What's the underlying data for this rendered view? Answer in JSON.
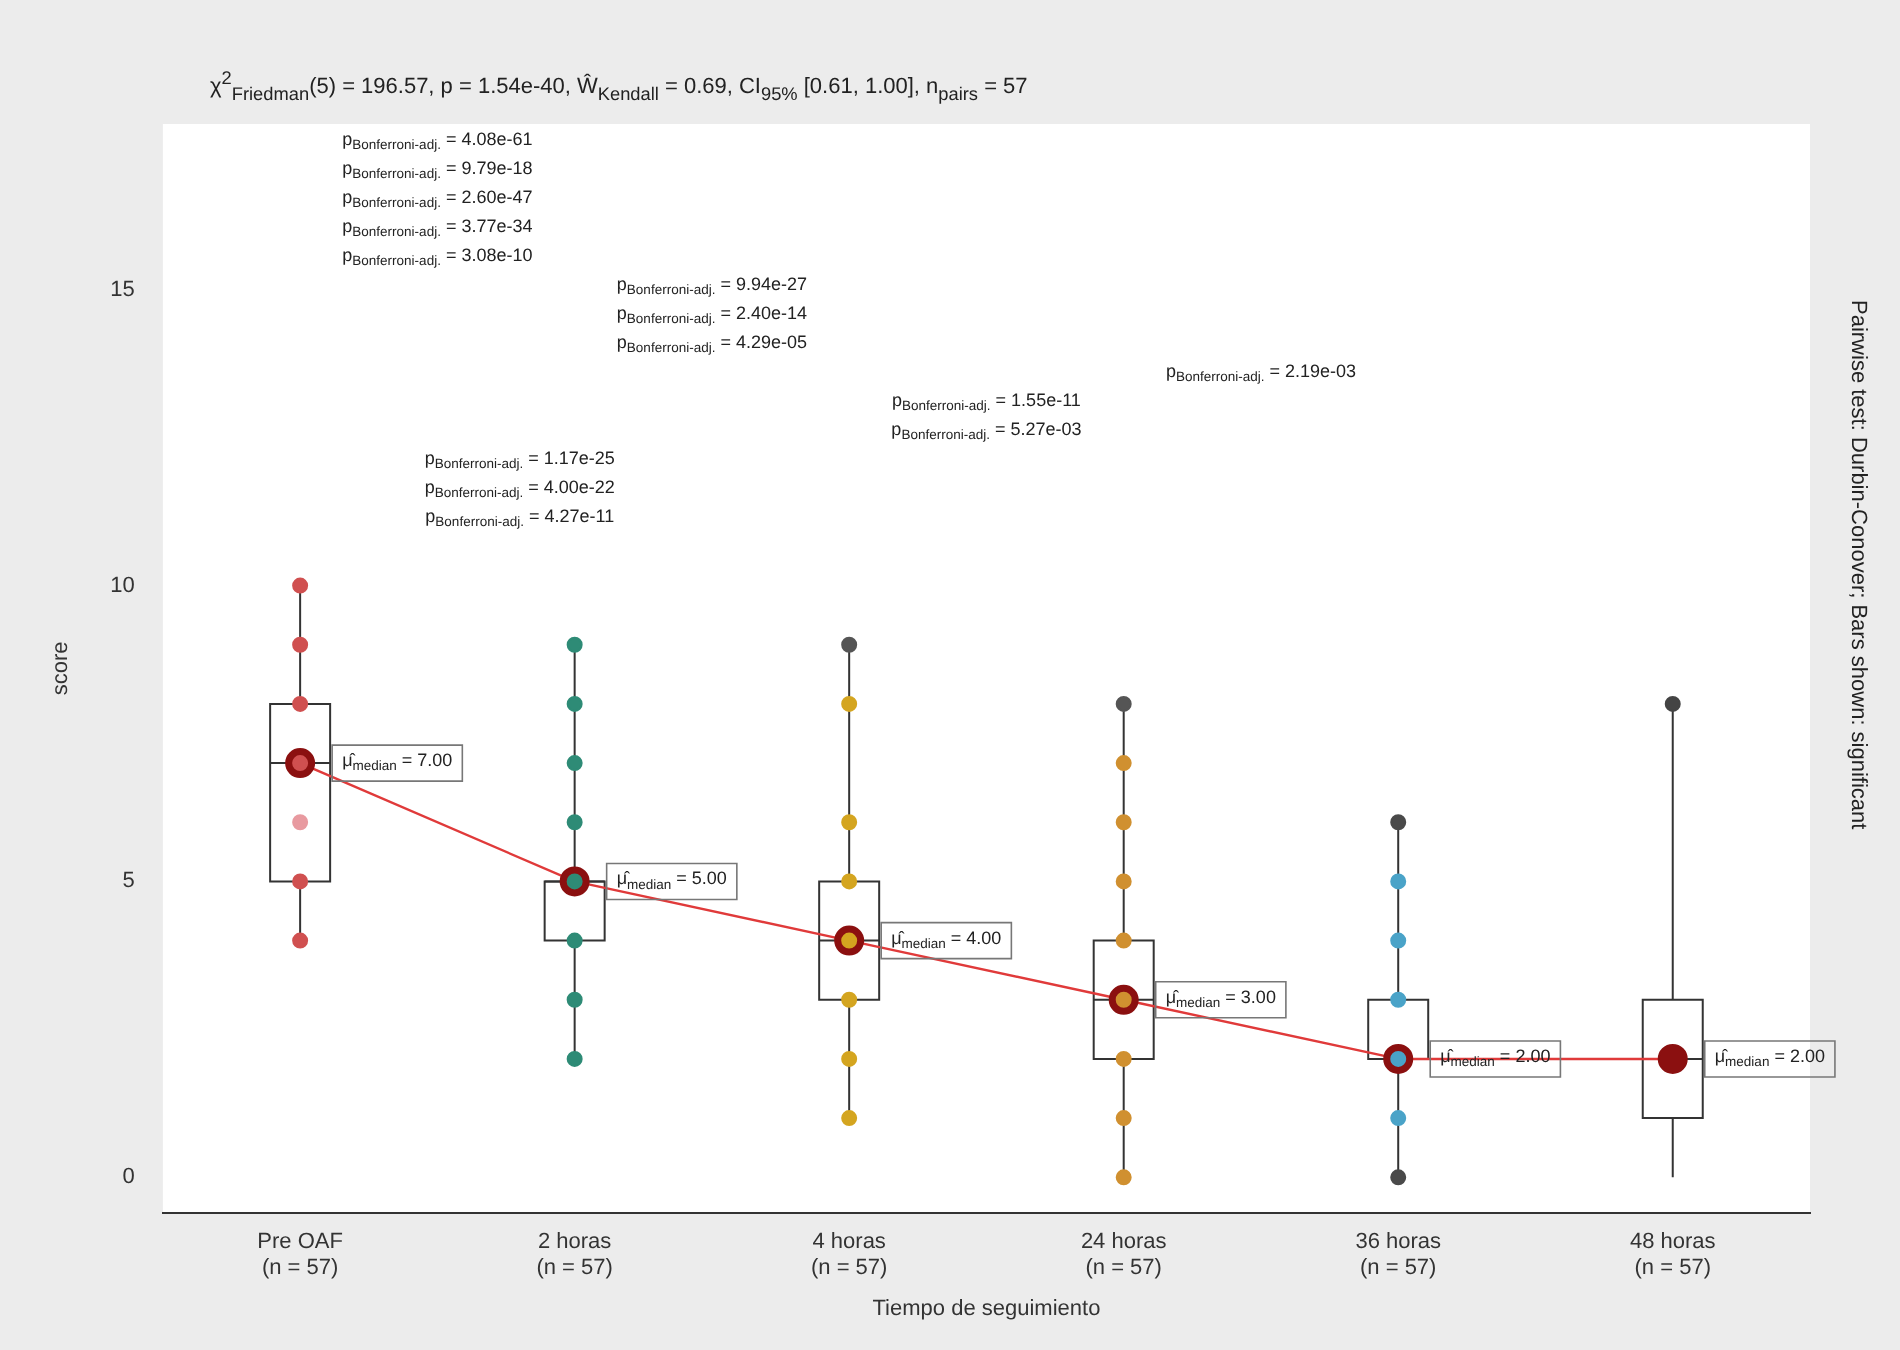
{
  "chart_data": {
    "type": "box",
    "title": "χ$^{2}$$_{Friedman}$(5) = 196.57, p = 1.54e-40, Ŵ$_{Kendall}$ = 0.69, CI$_{95%}$ [0.61, 1.00], n$_{pairs}$ = 57",
    "xlabel": "Tiempo de seguimiento",
    "ylabel": "score",
    "categories": [
      "Pre OAF\n(n = 57)",
      "2 horas\n(n = 57)",
      "4 horas\n(n = 57)",
      "24 horas\n(n = 57)",
      "36 horas\n(n = 57)",
      "48 horas\n(n = 57)"
    ],
    "ylim": [
      -0.6,
      17.8
    ],
    "yticks": [
      0,
      5,
      10,
      15
    ],
    "grid": false,
    "series": [
      {
        "type": "box",
        "color": "#333333",
        "boxes": [
          {
            "low": 4,
            "q1": 5,
            "median": 7,
            "q3": 8,
            "high": 10
          },
          {
            "low": 2,
            "q1": 4,
            "median": 5,
            "q3": 5,
            "high": 9
          },
          {
            "low": 1,
            "q1": 3,
            "median": 4,
            "q3": 5,
            "high": 9
          },
          {
            "low": 0,
            "q1": 2,
            "median": 3,
            "q3": 4,
            "high": 8
          },
          {
            "low": 0,
            "q1": 2,
            "median": 2,
            "q3": 3,
            "high": 6
          },
          {
            "low": 0,
            "q1": 1,
            "median": 2,
            "q3": 3,
            "high": 8
          }
        ]
      },
      {
        "type": "scatter",
        "marker": "circle",
        "x": [
          "Pre OAF\n(n = 57)",
          "Pre OAF\n(n = 57)",
          "Pre OAF\n(n = 57)",
          "Pre OAF\n(n = 57)",
          "Pre OAF\n(n = 57)",
          "Pre OAF\n(n = 57)",
          "Pre OAF\n(n = 57)",
          "2 horas\n(n = 57)",
          "2 horas\n(n = 57)",
          "2 horas\n(n = 57)",
          "2 horas\n(n = 57)",
          "2 horas\n(n = 57)",
          "2 horas\n(n = 57)",
          "2 horas\n(n = 57)",
          "2 horas\n(n = 57)",
          "4 horas\n(n = 57)",
          "4 horas\n(n = 57)",
          "4 horas\n(n = 57)",
          "4 horas\n(n = 57)",
          "4 horas\n(n = 57)",
          "4 horas\n(n = 57)",
          "4 horas\n(n = 57)",
          "4 horas\n(n = 57)",
          "24 horas\n(n = 57)",
          "24 horas\n(n = 57)",
          "24 horas\n(n = 57)",
          "24 horas\n(n = 57)",
          "24 horas\n(n = 57)",
          "24 horas\n(n = 57)",
          "24 horas\n(n = 57)",
          "24 horas\n(n = 57)",
          "24 horas\n(n = 57)",
          "36 horas\n(n = 57)",
          "36 horas\n(n = 57)",
          "36 horas\n(n = 57)",
          "36 horas\n(n = 57)",
          "36 horas\n(n = 57)",
          "36 horas\n(n = 57)",
          "36 horas\n(n = 57)",
          "48 horas\n(n = 57)"
        ],
        "values": [
          4,
          5,
          6,
          7,
          8,
          9,
          10,
          2,
          3,
          4,
          5,
          6,
          7,
          8,
          9,
          1,
          2,
          3,
          4,
          5,
          6,
          8,
          9,
          0,
          1,
          2,
          3,
          4,
          5,
          6,
          7,
          8,
          0,
          1,
          2,
          3,
          4,
          5,
          6,
          8
        ],
        "colors": [
          "#d05050",
          "#d05050",
          "#e89aa0",
          "#d05050",
          "#d05050",
          "#d05050",
          "#d05050",
          "#2e8b76",
          "#2e8b76",
          "#2e8b76",
          "#2e8b76",
          "#2e8b76",
          "#2e8b76",
          "#2e8b76",
          "#2e8b76",
          "#d4a520",
          "#d4a520",
          "#d4a520",
          "#d4a520",
          "#d4a520",
          "#d4a520",
          "#d4a520",
          "#555555",
          "#d09030",
          "#d09030",
          "#d09030",
          "#d09030",
          "#d09030",
          "#d09030",
          "#d09030",
          "#d09030",
          "#555555",
          "#4a4a4a",
          "#4aa3c8",
          "#4aa3c8",
          "#4aa3c8",
          "#4aa3c8",
          "#4aa3c8",
          "#4a4a4a",
          "#444444"
        ]
      },
      {
        "type": "line",
        "marker": "none",
        "color": "#e03a3a",
        "values": [
          7,
          5,
          4,
          3,
          2,
          2
        ]
      },
      {
        "type": "scatter",
        "marker": "circle",
        "color": "#8b1010",
        "x": [
          "Pre OAF\n(n = 57)",
          "2 horas\n(n = 57)",
          "4 horas\n(n = 57)",
          "24 horas\n(n = 57)",
          "36 horas\n(n = 57)",
          "48 horas\n(n = 57)"
        ],
        "values": [
          7,
          5,
          4,
          3,
          2,
          2
        ]
      }
    ],
    "annotations": [
      {
        "text": "μ̂$_{median}$ = 7.00",
        "x": "Pre OAF\n(n = 57)",
        "y": 7
      },
      {
        "text": "μ̂$_{median}$ = 5.00",
        "x": "2 horas\n(n = 57)",
        "y": 5
      },
      {
        "text": "μ̂$_{median}$ = 4.00",
        "x": "4 horas\n(n = 57)",
        "y": 4
      },
      {
        "text": "μ̂$_{median}$ = 3.00",
        "x": "24 horas\n(n = 57)",
        "y": 3
      },
      {
        "text": "μ̂$_{median}$ = 2.00",
        "x": "36 horas\n(n = 57)",
        "y": 2
      },
      {
        "text": "μ̂$_{median}$ = 2.00",
        "x": "48 horas\n(n = 57)",
        "y": 2
      },
      "p$_{Bonferroni-adj.}$ = 4.08e-61",
      "p$_{Bonferroni-adj.}$ = 9.79e-18",
      "p$_{Bonferroni-adj.}$ = 2.60e-47",
      "p$_{Bonferroni-adj.}$ = 3.77e-34",
      "p$_{Bonferroni-adj.}$ = 3.08e-10",
      "p$_{Bonferroni-adj.}$ = 9.94e-27",
      "p$_{Bonferroni-adj.}$ = 2.40e-14",
      "p$_{Bonferroni-adj.}$ = 4.29e-05",
      "p$_{Bonferroni-adj.}$ = 2.19e-03",
      "p$_{Bonferroni-adj.}$ = 1.55e-11",
      "p$_{Bonferroni-adj.}$ = 5.27e-03",
      "p$_{Bonferroni-adj.}$ = 1.17e-25",
      "p$_{Bonferroni-adj.}$ = 4.00e-22",
      "p$_{Bonferroni-adj.}$ = 4.27e-11",
      "Pairwise test: Durbin-Conover; Bars shown: significant"
    ]
  }
}
